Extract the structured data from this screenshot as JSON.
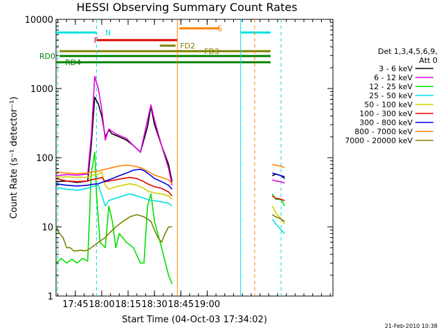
{
  "chart_data": {
    "type": "line",
    "title": "HESSI Observing Summary Count Rates",
    "xlabel": "Start Time (04-Oct-03 17:34:02)",
    "ylabel": "Count Rate (s⁻¹ detector⁻¹)",
    "x_unit": "minutes after 17:34:02",
    "xlim": [
      0,
      157.5
    ],
    "ylim": [
      1,
      10000
    ],
    "y_scale": "log",
    "x_ticks": [
      {
        "x": 10.97,
        "label": "17:45"
      },
      {
        "x": 25.97,
        "label": "18:00"
      },
      {
        "x": 40.97,
        "label": "18:15"
      },
      {
        "x": 55.97,
        "label": "18:30"
      },
      {
        "x": 70.97,
        "label": "18:45"
      },
      {
        "x": 85.97,
        "label": "19:00"
      }
    ],
    "y_ticks": [
      {
        "y": 1,
        "label": "1"
      },
      {
        "y": 10,
        "label": "10"
      },
      {
        "y": 100,
        "label": "100"
      },
      {
        "y": 1000,
        "label": "1000"
      },
      {
        "y": 10000,
        "label": "10000"
      }
    ],
    "legend": {
      "position": "right",
      "header": [
        "Det 1,3,4,5,6,9,",
        "Att 0"
      ]
    },
    "series": [
      {
        "name": "3 - 6 keV",
        "color": "#000000",
        "data": [
          [
            0,
            45
          ],
          [
            6,
            46
          ],
          [
            12,
            44
          ],
          [
            18,
            46
          ],
          [
            20,
            150
          ],
          [
            22,
            750
          ],
          [
            24,
            600
          ],
          [
            26,
            400
          ],
          [
            28,
            200
          ],
          [
            30,
            250
          ],
          [
            32,
            220
          ],
          [
            34,
            210
          ],
          [
            36,
            200
          ],
          [
            40,
            180
          ],
          [
            44,
            150
          ],
          [
            48,
            120
          ],
          [
            52,
            280
          ],
          [
            54,
            550
          ],
          [
            56,
            300
          ],
          [
            60,
            150
          ],
          [
            64,
            80
          ],
          [
            66,
            45
          ],
          [
            null,
            null
          ],
          [
            123,
            55
          ],
          [
            125,
            58
          ],
          [
            128,
            55
          ],
          [
            130,
            53
          ]
        ]
      },
      {
        "name": "6 - 12 keV",
        "color": "#e000e0",
        "data": [
          [
            0,
            55
          ],
          [
            6,
            57
          ],
          [
            12,
            56
          ],
          [
            18,
            58
          ],
          [
            20,
            200
          ],
          [
            22,
            1500
          ],
          [
            24,
            1000
          ],
          [
            26,
            500
          ],
          [
            28,
            180
          ],
          [
            30,
            260
          ],
          [
            32,
            240
          ],
          [
            34,
            220
          ],
          [
            36,
            210
          ],
          [
            40,
            190
          ],
          [
            44,
            150
          ],
          [
            48,
            120
          ],
          [
            52,
            350
          ],
          [
            54,
            580
          ],
          [
            56,
            350
          ],
          [
            60,
            150
          ],
          [
            64,
            70
          ],
          [
            66,
            40
          ],
          [
            null,
            null
          ],
          [
            123,
            48
          ],
          [
            125,
            46
          ],
          [
            128,
            45
          ],
          [
            130,
            43
          ]
        ]
      },
      {
        "name": "12 - 25 keV",
        "color": "#00e000",
        "data": [
          [
            0,
            3
          ],
          [
            3,
            3.5
          ],
          [
            6,
            3
          ],
          [
            9,
            3.4
          ],
          [
            12,
            3
          ],
          [
            15,
            3.5
          ],
          [
            18,
            3.2
          ],
          [
            20,
            60
          ],
          [
            22,
            120
          ],
          [
            23,
            30
          ],
          [
            25,
            6
          ],
          [
            28,
            5
          ],
          [
            30,
            20
          ],
          [
            32,
            12
          ],
          [
            34,
            5
          ],
          [
            36,
            8
          ],
          [
            40,
            6
          ],
          [
            44,
            5
          ],
          [
            48,
            3
          ],
          [
            50,
            3
          ],
          [
            52,
            20
          ],
          [
            54,
            30
          ],
          [
            56,
            12
          ],
          [
            60,
            5
          ],
          [
            64,
            2
          ],
          [
            66,
            1.5
          ],
          [
            null,
            null
          ],
          [
            123,
            30
          ],
          [
            125,
            25
          ],
          [
            128,
            25
          ],
          [
            130,
            20
          ]
        ]
      },
      {
        "name": "25 - 50 keV",
        "color": "#00e0e0",
        "data": [
          [
            0,
            37
          ],
          [
            6,
            35
          ],
          [
            12,
            34
          ],
          [
            18,
            36
          ],
          [
            20,
            38
          ],
          [
            24,
            40
          ],
          [
            28,
            20
          ],
          [
            30,
            24
          ],
          [
            34,
            26
          ],
          [
            38,
            28
          ],
          [
            42,
            30
          ],
          [
            46,
            28
          ],
          [
            50,
            26
          ],
          [
            52,
            25
          ],
          [
            54,
            24
          ],
          [
            56,
            24
          ],
          [
            60,
            23
          ],
          [
            64,
            22
          ],
          [
            66,
            20
          ],
          [
            null,
            null
          ],
          [
            123,
            13
          ],
          [
            125,
            11
          ],
          [
            128,
            9
          ],
          [
            130,
            8
          ]
        ]
      },
      {
        "name": "50 - 100 keV",
        "color": "#d0d000",
        "data": [
          [
            0,
            52
          ],
          [
            6,
            53
          ],
          [
            12,
            52
          ],
          [
            18,
            52
          ],
          [
            20,
            55
          ],
          [
            24,
            58
          ],
          [
            26,
            62
          ],
          [
            28,
            40
          ],
          [
            30,
            35
          ],
          [
            34,
            38
          ],
          [
            38,
            40
          ],
          [
            42,
            42
          ],
          [
            46,
            40
          ],
          [
            50,
            36
          ],
          [
            52,
            33
          ],
          [
            54,
            32
          ],
          [
            56,
            31
          ],
          [
            60,
            30
          ],
          [
            64,
            28
          ],
          [
            66,
            25
          ],
          [
            null,
            null
          ],
          [
            123,
            20
          ],
          [
            125,
            16
          ],
          [
            128,
            13
          ],
          [
            130,
            11
          ]
        ]
      },
      {
        "name": "100 - 300 keV",
        "color": "#e00000",
        "data": [
          [
            0,
            50
          ],
          [
            6,
            46
          ],
          [
            12,
            45
          ],
          [
            18,
            46
          ],
          [
            20,
            48
          ],
          [
            24,
            50
          ],
          [
            26,
            52
          ],
          [
            28,
            45
          ],
          [
            30,
            46
          ],
          [
            34,
            48
          ],
          [
            38,
            50
          ],
          [
            42,
            52
          ],
          [
            46,
            50
          ],
          [
            50,
            45
          ],
          [
            52,
            42
          ],
          [
            54,
            40
          ],
          [
            56,
            38
          ],
          [
            60,
            36
          ],
          [
            64,
            32
          ],
          [
            66,
            28
          ],
          [
            null,
            null
          ],
          [
            123,
            28
          ],
          [
            125,
            26
          ],
          [
            128,
            25
          ],
          [
            130,
            24
          ]
        ]
      },
      {
        "name": "300 - 800 keV",
        "color": "#0000e0",
        "data": [
          [
            0,
            42
          ],
          [
            6,
            40
          ],
          [
            12,
            39
          ],
          [
            18,
            40
          ],
          [
            20,
            41
          ],
          [
            24,
            42
          ],
          [
            28,
            46
          ],
          [
            32,
            50
          ],
          [
            36,
            55
          ],
          [
            40,
            60
          ],
          [
            44,
            66
          ],
          [
            48,
            68
          ],
          [
            50,
            65
          ],
          [
            52,
            60
          ],
          [
            54,
            55
          ],
          [
            56,
            50
          ],
          [
            60,
            45
          ],
          [
            64,
            40
          ],
          [
            66,
            35
          ],
          [
            null,
            null
          ],
          [
            123,
            60
          ],
          [
            125,
            58
          ],
          [
            128,
            55
          ],
          [
            130,
            50
          ]
        ]
      },
      {
        "name": "800 - 7000 keV",
        "color": "#ff8000",
        "data": [
          [
            0,
            62
          ],
          [
            6,
            60
          ],
          [
            12,
            59
          ],
          [
            18,
            60
          ],
          [
            20,
            62
          ],
          [
            24,
            64
          ],
          [
            28,
            68
          ],
          [
            32,
            72
          ],
          [
            36,
            76
          ],
          [
            40,
            78
          ],
          [
            44,
            76
          ],
          [
            48,
            72
          ],
          [
            50,
            68
          ],
          [
            52,
            64
          ],
          [
            54,
            60
          ],
          [
            56,
            56
          ],
          [
            60,
            52
          ],
          [
            64,
            48
          ],
          [
            66,
            42
          ],
          [
            null,
            null
          ],
          [
            123,
            80
          ],
          [
            125,
            78
          ],
          [
            128,
            75
          ],
          [
            130,
            72
          ]
        ]
      },
      {
        "name": "7000 - 20000 keV",
        "color": "#808000",
        "data": [
          [
            0,
            10
          ],
          [
            2,
            8
          ],
          [
            4,
            7
          ],
          [
            6,
            5
          ],
          [
            8,
            5
          ],
          [
            10,
            4.5
          ],
          [
            12,
            4.5
          ],
          [
            14,
            4.6
          ],
          [
            16,
            4.5
          ],
          [
            18,
            4.6
          ],
          [
            20,
            5
          ],
          [
            24,
            6
          ],
          [
            28,
            7
          ],
          [
            30,
            8
          ],
          [
            34,
            10
          ],
          [
            38,
            12
          ],
          [
            42,
            14
          ],
          [
            46,
            15
          ],
          [
            50,
            14
          ],
          [
            54,
            12
          ],
          [
            56,
            9
          ],
          [
            58,
            7
          ],
          [
            60,
            6
          ],
          [
            62,
            8
          ],
          [
            64,
            10
          ],
          [
            66,
            10
          ],
          [
            null,
            null
          ],
          [
            123,
            15
          ],
          [
            125,
            14
          ],
          [
            128,
            13
          ],
          [
            130,
            12
          ]
        ]
      }
    ],
    "state_bars": [
      {
        "label": "N",
        "color": "#00e0e0",
        "segments": [
          [
            0,
            23
          ],
          [
            105,
            122
          ]
        ]
      },
      {
        "label": "F",
        "color": "#e00000",
        "segments": [
          [
            23,
            69
          ]
        ]
      },
      {
        "label": "S",
        "color": "#ff8000",
        "segments": [
          [
            70,
            93
          ]
        ]
      },
      {
        "label": "FD2",
        "color": "#808000",
        "segments": [
          [
            59,
            68
          ]
        ]
      },
      {
        "label": "FD3",
        "color": "#808000",
        "segments": [
          [
            2,
            122
          ]
        ]
      },
      {
        "label": "RD0",
        "color": "#008000",
        "segments": [
          [
            2,
            37
          ],
          [
            37,
            122
          ]
        ]
      },
      {
        "label": "RD4",
        "color": "#008000",
        "segments": [
          [
            0,
            33
          ],
          [
            33,
            59
          ],
          [
            59,
            92
          ],
          [
            92,
            122
          ]
        ]
      }
    ],
    "vertical_markers": [
      {
        "x": 1,
        "color": "#00e0e0",
        "style": "dashed"
      },
      {
        "x": 23,
        "color": "#00e0e0",
        "style": "dashed"
      },
      {
        "x": 69,
        "color": "#ff8000",
        "style": "solid"
      },
      {
        "x": 105,
        "color": "#00e0e0",
        "style": "solid"
      },
      {
        "x": 113,
        "color": "#ff8000",
        "style": "dashed"
      },
      {
        "x": 128,
        "color": "#00e0e0",
        "style": "dashed"
      }
    ]
  },
  "footer_date": "21-Feb-2010 10:38"
}
